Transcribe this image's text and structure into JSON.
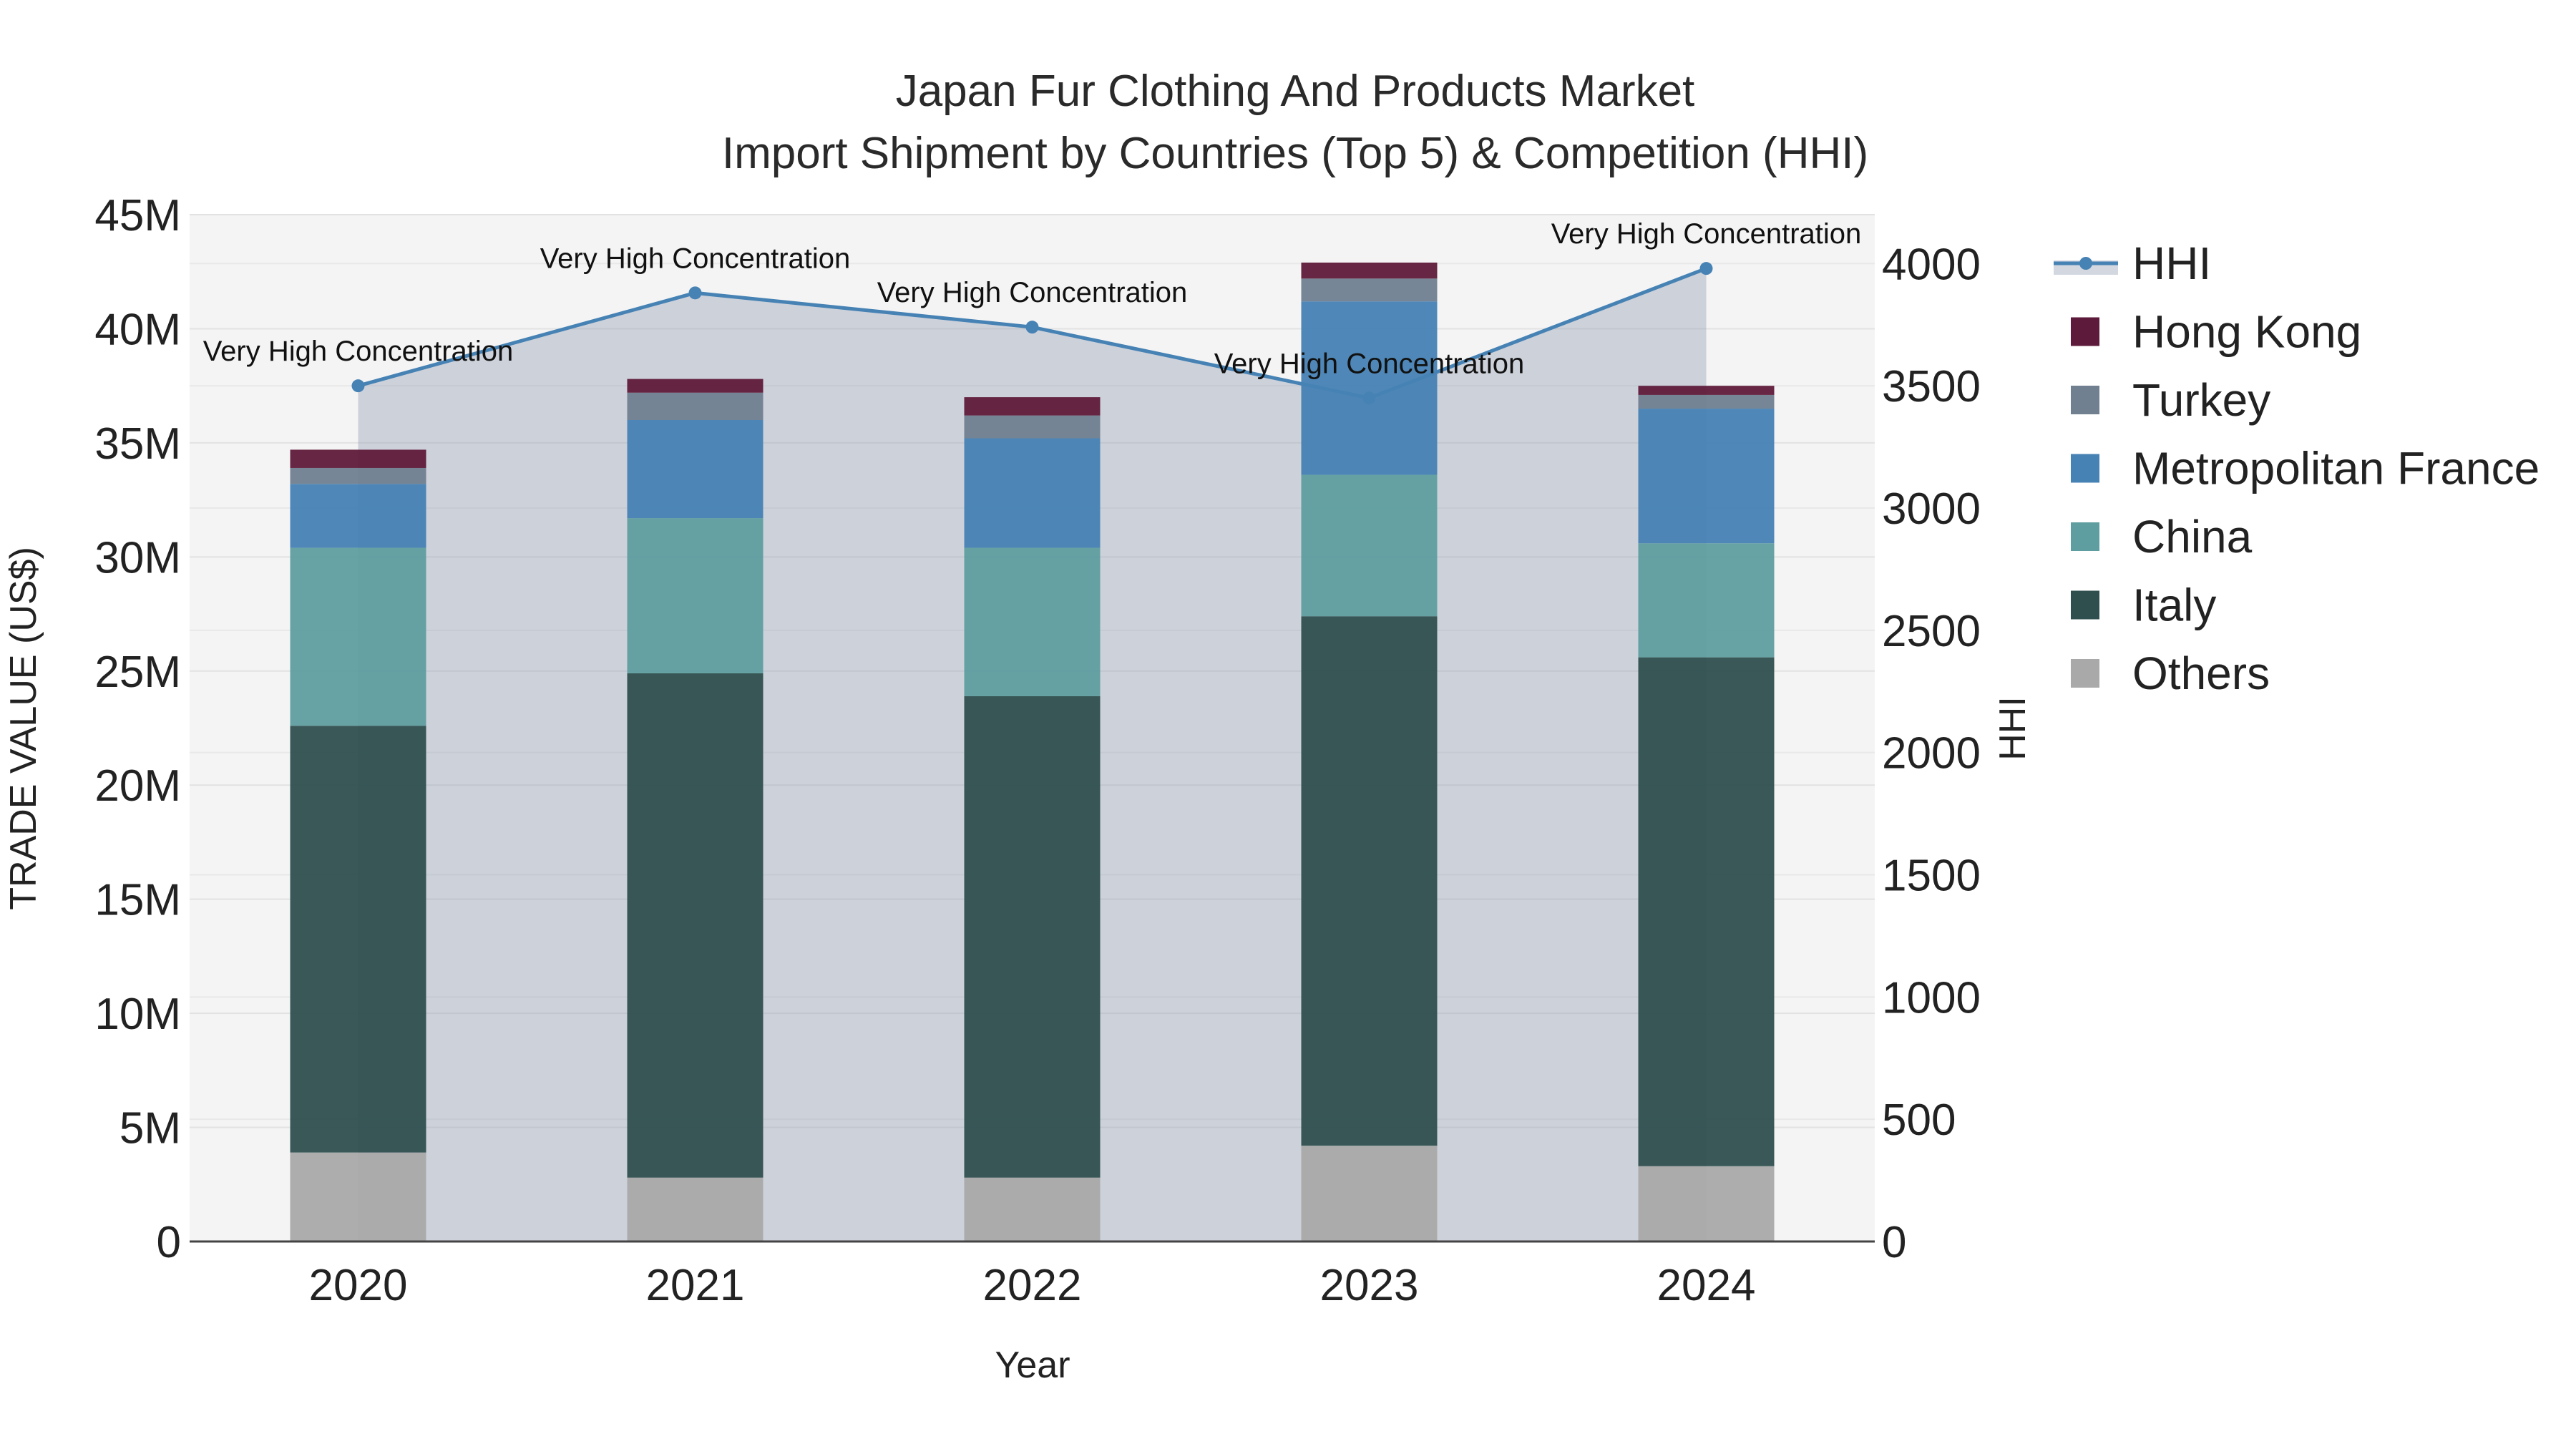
{
  "chart_data": {
    "type": "bar",
    "title_line1": "Japan Fur Clothing And Products Market",
    "title_line2": "Import Shipment by Countries (Top 5) & Competition (HHI)",
    "xlabel": "Year",
    "ylabel": "TRADE VALUE (US$)",
    "y2label": "HHI",
    "categories": [
      "2020",
      "2021",
      "2022",
      "2023",
      "2024"
    ],
    "ylim": [
      0,
      45000000
    ],
    "y2lim": [
      0,
      4200
    ],
    "y_ticks": [
      0,
      5000000,
      10000000,
      15000000,
      20000000,
      25000000,
      30000000,
      35000000,
      40000000,
      45000000
    ],
    "y_tick_labels": [
      "0",
      "5M",
      "10M",
      "15M",
      "20M",
      "25M",
      "30M",
      "35M",
      "40M",
      "45M"
    ],
    "y2_ticks": [
      0,
      500,
      1000,
      1500,
      2000,
      2500,
      3000,
      3500,
      4000
    ],
    "y2_tick_labels": [
      "0",
      "500",
      "1000",
      "1500",
      "2000",
      "2500",
      "3000",
      "3500",
      "4000"
    ],
    "series": [
      {
        "name": "Others",
        "color": "#a9a9a9",
        "values": [
          3900000,
          2800000,
          2800000,
          4200000,
          3300000
        ]
      },
      {
        "name": "Italy",
        "color": "#2f4f4f",
        "values": [
          18700000,
          22100000,
          21100000,
          23200000,
          22300000
        ]
      },
      {
        "name": "China",
        "color": "#5f9ea0",
        "values": [
          7800000,
          6800000,
          6500000,
          6200000,
          5000000
        ]
      },
      {
        "name": "Metropolitan France",
        "color": "#4682b4",
        "values": [
          2800000,
          4300000,
          4800000,
          7600000,
          5900000
        ]
      },
      {
        "name": "Turkey",
        "color": "#708090",
        "values": [
          700000,
          1200000,
          1000000,
          1000000,
          600000
        ]
      },
      {
        "name": "Hong Kong",
        "color": "#5e1a3a",
        "values": [
          800000,
          600000,
          800000,
          700000,
          400000
        ]
      }
    ],
    "hhi": {
      "name": "HHI",
      "color": "#4682b4",
      "values": [
        3500,
        3880,
        3740,
        3450,
        3980
      ],
      "annotations": [
        "Very High Concentration",
        "Very High Concentration",
        "Very High Concentration",
        "Very High Concentration",
        "Very High Concentration"
      ]
    },
    "legend": [
      "HHI",
      "Hong Kong",
      "Turkey",
      "Metropolitan France",
      "China",
      "Italy",
      "Others"
    ],
    "legend_position": "right"
  }
}
